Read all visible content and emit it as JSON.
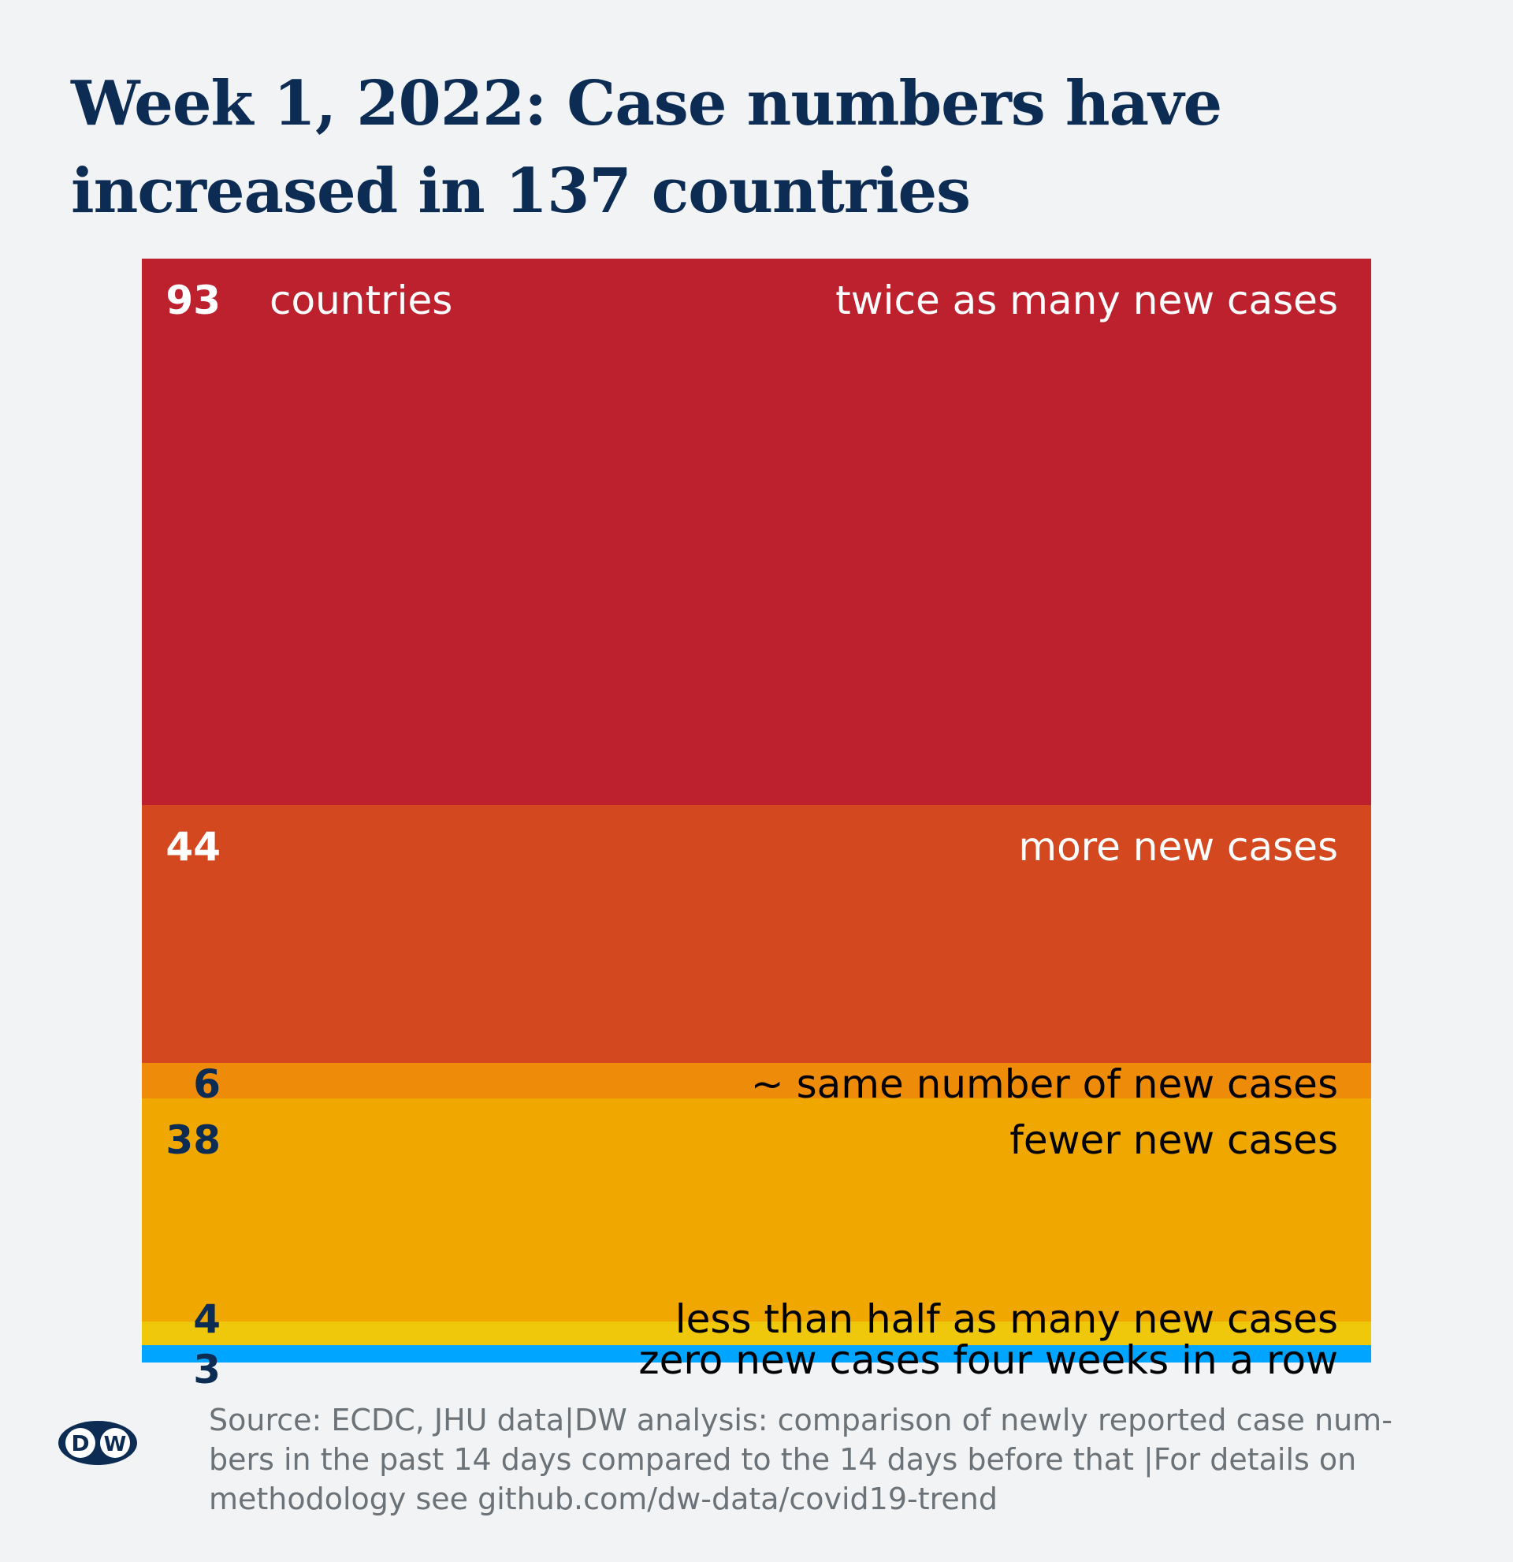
{
  "title_line1": "Week 1, 2022: Case numbers have",
  "title_line2": "increased in 137 countries",
  "unit_label": "countries",
  "source_line1": "Source: ECDC, JHU data|DW analysis: comparison of newly reported case num-",
  "source_line2": "bers in the past 14 days compared to the 14 days before that |For details on",
  "source_line3": "methodology see github.com/dw-data/covid19-trend",
  "logo_text": "DW",
  "chart_data": {
    "type": "bar",
    "orientation": "stacked-vertical",
    "title": "Week 1, 2022: Case numbers have increased in 137 countries",
    "categories": [
      "twice as many new cases",
      "more new cases",
      "~ same number of new cases",
      "fewer new cases",
      "less than half as many new cases",
      "zero new cases four weeks in a row"
    ],
    "values": [
      93,
      44,
      6,
      38,
      4,
      3
    ],
    "colors": [
      "#bd212e",
      "#d44820",
      "#ee8c0a",
      "#f0a800",
      "#efc80c",
      "#00a5ff"
    ],
    "count_colors": [
      "#ffffff",
      "#ffffff",
      "#0d2c54",
      "#0d2c54",
      "#0d2c54",
      "#0d2c54"
    ],
    "label_colors": [
      "#ffffff",
      "#ffffff",
      "#000000",
      "#000000",
      "#000000",
      "#000000"
    ]
  }
}
